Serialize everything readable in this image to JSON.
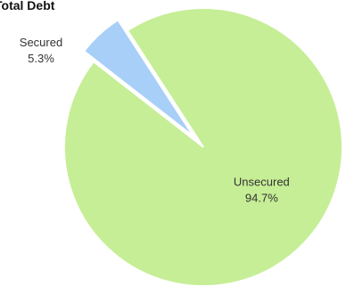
{
  "chart_data": {
    "type": "pie",
    "title": "Total Debt",
    "slices": [
      {
        "label": "Unsecured",
        "value": 94.7,
        "value_label": "94.7%",
        "color": "#c6ee96",
        "exploded": false
      },
      {
        "label": "Secured",
        "value": 5.3,
        "value_label": "5.3%",
        "color": "#a8cff7",
        "exploded": true
      }
    ],
    "legend": "none",
    "labels_placement": "inside for large slice, outside for small slice"
  }
}
